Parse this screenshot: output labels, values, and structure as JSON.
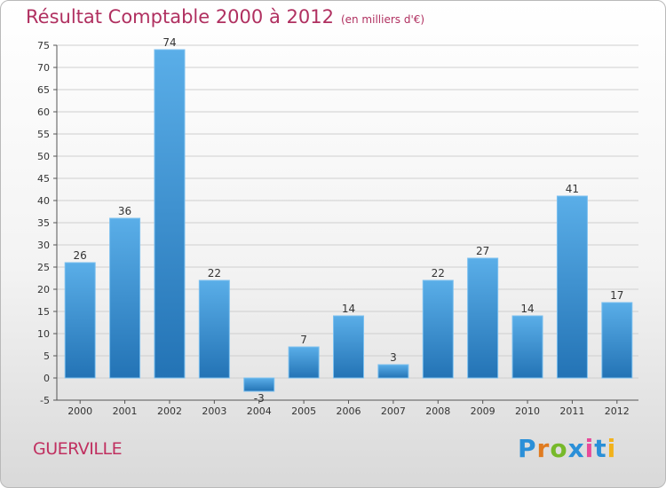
{
  "header": {
    "title": "Résultat Comptable 2000 à 2012",
    "unit": "(en milliers d'€)"
  },
  "footer": {
    "town": "GUERVILLE",
    "logo_letters": [
      "P",
      "r",
      "o",
      "x",
      "i",
      "t",
      "i"
    ]
  },
  "colors": {
    "bar_top": "#5aaee8",
    "bar_bottom": "#2373b5",
    "grid": "#cfcfcf",
    "title": "#b03060"
  },
  "chart_data": {
    "type": "bar",
    "title": "Résultat Comptable 2000 à 2012",
    "ylabel": "(en milliers d'€)",
    "categories": [
      "2000",
      "2001",
      "2002",
      "2003",
      "2004",
      "2005",
      "2006",
      "2007",
      "2008",
      "2009",
      "2010",
      "2011",
      "2012"
    ],
    "values": [
      26,
      36,
      74,
      22,
      -3,
      7,
      14,
      3,
      22,
      27,
      14,
      41,
      17
    ],
    "value_labels": [
      "26",
      "36",
      "74",
      "22",
      "-3",
      "7",
      "14",
      "3",
      "22",
      "27",
      "14",
      "41",
      "17"
    ],
    "ylim": [
      -5,
      75
    ],
    "yticks": [
      -5,
      0,
      5,
      10,
      15,
      20,
      25,
      30,
      35,
      40,
      45,
      50,
      55,
      60,
      65,
      70,
      75
    ],
    "grid": true,
    "legend": "none"
  }
}
